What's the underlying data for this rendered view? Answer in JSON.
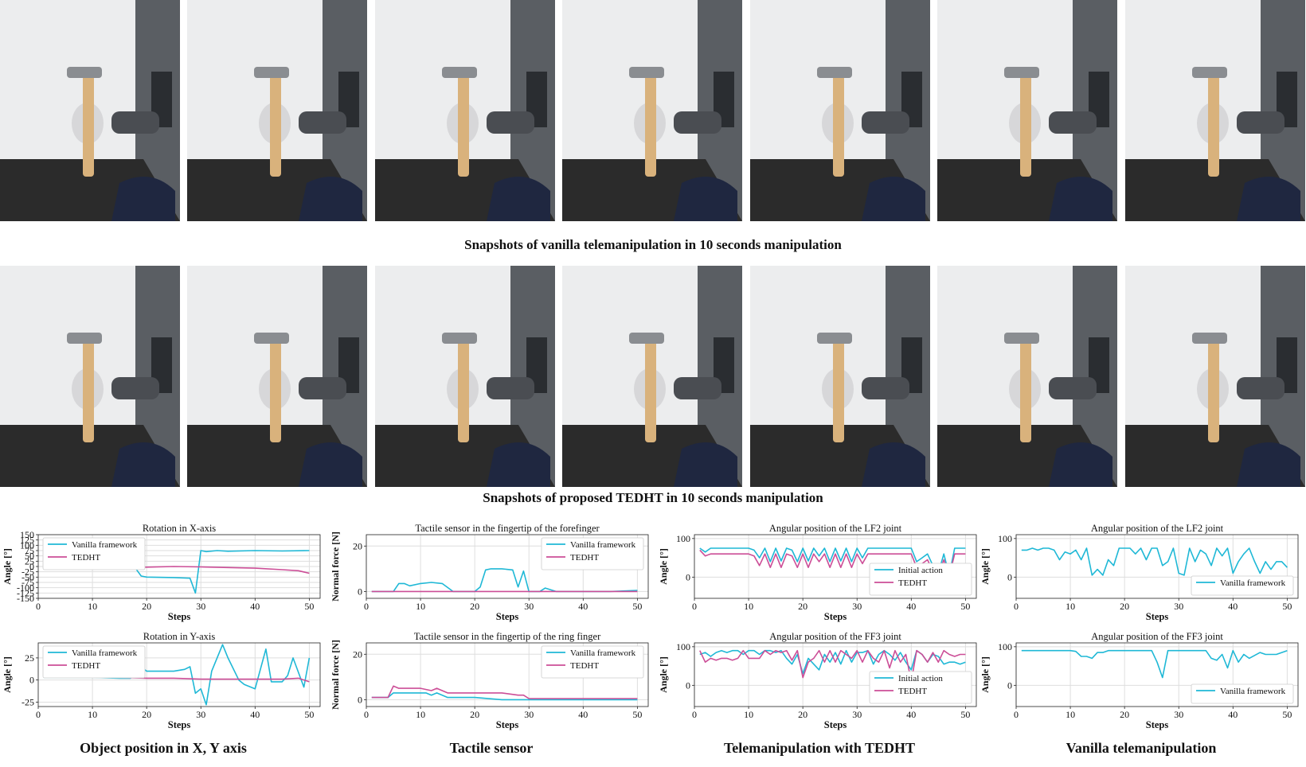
{
  "captions": {
    "vanilla_row": "Snapshots of vanilla telemanipulation in 10 seconds manipulation",
    "tedht_row": "Snapshots of proposed TEDHT in 10 seconds manipulation",
    "col1": "Object position in X, Y axis",
    "col2": "Tactile sensor",
    "col3": "Telemanipulation with TEDHT",
    "col4": "Vanilla telemanipulation"
  },
  "colors": {
    "cyan": "#1fb8d6",
    "magenta": "#cc4e97"
  },
  "chart_data": [
    {
      "type": "line",
      "title": "Rotation in X-axis",
      "xlabel": "Steps",
      "ylabel": "Angle [°]",
      "xlim": [
        0,
        52
      ],
      "ylim": [
        -150,
        150
      ],
      "xticks": [
        0,
        10,
        20,
        30,
        40,
        50
      ],
      "yticks": [
        -150,
        -125,
        -100,
        -75,
        -50,
        -25,
        0,
        25,
        50,
        75,
        100,
        125,
        150
      ],
      "grid": true,
      "legend": "upper-left",
      "series": [
        {
          "name": "Vanilla framework",
          "color": "#1fb8d6",
          "x": [
            1,
            5,
            10,
            15,
            18,
            19,
            20,
            25,
            28,
            29,
            30,
            31,
            33,
            35,
            40,
            45,
            50
          ],
          "y": [
            -5,
            -5,
            -5,
            -6,
            -10,
            -45,
            -50,
            -52,
            -55,
            -125,
            75,
            70,
            75,
            72,
            75,
            73,
            75
          ]
        },
        {
          "name": "TEDHT",
          "color": "#cc4e97",
          "x": [
            1,
            10,
            20,
            25,
            30,
            35,
            40,
            45,
            48,
            50
          ],
          "y": [
            -8,
            -7,
            -3,
            0,
            -2,
            -5,
            -8,
            -15,
            -20,
            -32
          ]
        }
      ]
    },
    {
      "type": "line",
      "title": "Tactile sensor in the fingertip of the forefinger",
      "xlabel": "Steps",
      "ylabel": "Normal force [N]",
      "xlim": [
        0,
        52
      ],
      "ylim": [
        -3,
        25
      ],
      "xticks": [
        0,
        10,
        20,
        30,
        40,
        50
      ],
      "yticks": [
        0,
        20
      ],
      "grid": true,
      "legend": "upper-right",
      "series": [
        {
          "name": "Vanilla framework",
          "color": "#1fb8d6",
          "x": [
            1,
            5,
            6,
            7,
            8,
            10,
            12,
            14,
            16,
            18,
            20,
            21,
            22,
            23,
            25,
            27,
            28,
            29,
            30,
            32,
            33,
            35,
            40,
            45,
            50
          ],
          "y": [
            0,
            0,
            3.5,
            3.5,
            2.5,
            3.5,
            4,
            3.5,
            0,
            0,
            0,
            2,
            9.5,
            10,
            10,
            9.5,
            2,
            9,
            0,
            0,
            1.5,
            0,
            0,
            0,
            0.5
          ]
        },
        {
          "name": "TEDHT",
          "color": "#cc4e97",
          "x": [
            1,
            10,
            15,
            20,
            25,
            30,
            35,
            40,
            45,
            50
          ],
          "y": [
            0,
            0,
            0,
            0,
            0,
            0,
            0,
            0,
            0,
            0
          ]
        }
      ]
    },
    {
      "type": "line",
      "title": "Angular position of the LF2 joint",
      "xlabel": "Steps",
      "ylabel": "Angle [°]",
      "xlim": [
        0,
        52
      ],
      "ylim": [
        -55,
        110
      ],
      "xticks": [
        0,
        10,
        20,
        30,
        40,
        50
      ],
      "yticks": [
        0,
        100
      ],
      "grid": true,
      "legend": "lower-right",
      "series": [
        {
          "name": "Initial action",
          "color": "#1fb8d6",
          "x": [
            1,
            2,
            3,
            5,
            10,
            11,
            12,
            13,
            14,
            15,
            16,
            17,
            18,
            19,
            20,
            21,
            22,
            23,
            24,
            25,
            26,
            27,
            28,
            29,
            30,
            31,
            32,
            35,
            40,
            41,
            42,
            43,
            44,
            45,
            46,
            47,
            48,
            50
          ],
          "y": [
            75,
            65,
            75,
            75,
            75,
            70,
            50,
            75,
            40,
            75,
            42,
            75,
            70,
            40,
            75,
            42,
            75,
            55,
            75,
            40,
            75,
            42,
            75,
            40,
            75,
            50,
            75,
            75,
            75,
            40,
            50,
            60,
            30,
            10,
            60,
            5,
            75,
            75
          ]
        },
        {
          "name": "TEDHT",
          "color": "#cc4e97",
          "x": [
            1,
            2,
            3,
            5,
            10,
            11,
            12,
            13,
            14,
            15,
            16,
            17,
            18,
            19,
            20,
            21,
            22,
            23,
            24,
            25,
            26,
            27,
            28,
            29,
            30,
            31,
            32,
            35,
            40,
            41,
            42,
            43,
            44,
            45,
            46,
            47,
            48,
            50
          ],
          "y": [
            70,
            55,
            60,
            60,
            60,
            55,
            30,
            60,
            25,
            60,
            25,
            60,
            55,
            25,
            60,
            25,
            60,
            40,
            60,
            25,
            60,
            25,
            60,
            25,
            60,
            35,
            60,
            60,
            60,
            25,
            35,
            45,
            15,
            5,
            45,
            2,
            60,
            60
          ]
        }
      ]
    },
    {
      "type": "line",
      "title": "Angular position of the LF2 joint",
      "xlabel": "Steps",
      "ylabel": "Angle [°]",
      "xlim": [
        0,
        52
      ],
      "ylim": [
        -55,
        110
      ],
      "xticks": [
        0,
        10,
        20,
        30,
        40,
        50
      ],
      "yticks": [
        0,
        100
      ],
      "grid": true,
      "legend": "lower-right",
      "series": [
        {
          "name": "Vanilla framework",
          "color": "#1fb8d6",
          "x": [
            1,
            2,
            3,
            4,
            5,
            6,
            7,
            8,
            9,
            10,
            11,
            12,
            13,
            14,
            15,
            16,
            17,
            18,
            19,
            20,
            21,
            22,
            23,
            24,
            25,
            26,
            27,
            28,
            29,
            30,
            31,
            32,
            33,
            34,
            35,
            36,
            37,
            38,
            39,
            40,
            41,
            42,
            43,
            44,
            45,
            46,
            47,
            48,
            49,
            50
          ],
          "y": [
            70,
            70,
            75,
            70,
            75,
            75,
            70,
            45,
            65,
            60,
            70,
            45,
            75,
            5,
            20,
            5,
            45,
            30,
            75,
            75,
            75,
            60,
            75,
            45,
            75,
            75,
            30,
            40,
            75,
            10,
            5,
            75,
            40,
            70,
            60,
            30,
            75,
            55,
            75,
            10,
            40,
            60,
            75,
            40,
            10,
            40,
            20,
            40,
            40,
            25
          ]
        }
      ]
    },
    {
      "type": "line",
      "title": "Rotation in Y-axis",
      "xlabel": "Steps",
      "ylabel": "Angle [°]",
      "xlim": [
        0,
        52
      ],
      "ylim": [
        -30,
        42
      ],
      "xticks": [
        0,
        10,
        20,
        30,
        40,
        50
      ],
      "yticks": [
        -25,
        0,
        25
      ],
      "grid": true,
      "legend": "upper-left",
      "series": [
        {
          "name": "Vanilla framework",
          "color": "#1fb8d6",
          "x": [
            1,
            5,
            10,
            15,
            17,
            18,
            19,
            20,
            25,
            27,
            28,
            29,
            30,
            31,
            32,
            34,
            35,
            37,
            38,
            40,
            42,
            43,
            45,
            46,
            47,
            49,
            50
          ],
          "y": [
            3,
            3,
            3,
            2,
            2,
            5,
            15,
            10,
            10,
            12,
            15,
            -15,
            -10,
            -28,
            10,
            40,
            25,
            0,
            -5,
            -10,
            35,
            -2,
            -2,
            5,
            25,
            -8,
            25
          ]
        },
        {
          "name": "TEDHT",
          "color": "#cc4e97",
          "x": [
            1,
            5,
            10,
            15,
            20,
            25,
            30,
            35,
            40,
            45,
            48,
            50
          ],
          "y": [
            5,
            5,
            4,
            3,
            2,
            2,
            1,
            1,
            1,
            1,
            2,
            -2
          ]
        }
      ]
    },
    {
      "type": "line",
      "title": "Tactile sensor in the fingertip of the ring finger",
      "xlabel": "Steps",
      "ylabel": "Normal force [N]",
      "xlim": [
        0,
        52
      ],
      "ylim": [
        -3,
        25
      ],
      "xticks": [
        0,
        10,
        20,
        30,
        40,
        50
      ],
      "yticks": [
        0,
        20
      ],
      "grid": true,
      "legend": "upper-right",
      "series": [
        {
          "name": "Vanilla framework",
          "color": "#1fb8d6",
          "x": [
            1,
            4,
            5,
            8,
            10,
            11,
            12,
            13,
            15,
            18,
            20,
            25,
            30,
            35,
            40,
            45,
            50
          ],
          "y": [
            1,
            1,
            3,
            3,
            3,
            3,
            2,
            3,
            1,
            1,
            1,
            0,
            0,
            0,
            0,
            0,
            0
          ]
        },
        {
          "name": "TEDHT",
          "color": "#cc4e97",
          "x": [
            1,
            4,
            5,
            6,
            8,
            10,
            12,
            13,
            15,
            18,
            20,
            25,
            28,
            29,
            30,
            35,
            40,
            45,
            50
          ],
          "y": [
            1,
            1,
            6,
            5,
            5,
            5,
            4,
            5,
            3,
            3,
            3,
            3,
            2,
            2,
            0.5,
            0.5,
            0.5,
            0.5,
            0.5
          ]
        }
      ]
    },
    {
      "type": "line",
      "title": "Angular position of the FF3 joint",
      "xlabel": "Steps",
      "ylabel": "Angle [°]",
      "xlim": [
        0,
        52
      ],
      "ylim": [
        -55,
        110
      ],
      "xticks": [
        0,
        10,
        20,
        30,
        40,
        50
      ],
      "yticks": [
        0,
        100
      ],
      "grid": true,
      "legend": "lower-right",
      "series": [
        {
          "name": "Initial action",
          "color": "#1fb8d6",
          "x": [
            1,
            2,
            3,
            4,
            5,
            6,
            7,
            8,
            9,
            10,
            11,
            12,
            13,
            14,
            15,
            16,
            17,
            18,
            19,
            20,
            21,
            22,
            23,
            24,
            25,
            26,
            27,
            28,
            29,
            30,
            31,
            32,
            33,
            34,
            35,
            36,
            37,
            38,
            39,
            40,
            41,
            42,
            43,
            44,
            45,
            46,
            47,
            48,
            49,
            50
          ],
          "y": [
            80,
            85,
            75,
            85,
            90,
            85,
            90,
            90,
            80,
            90,
            90,
            80,
            90,
            90,
            85,
            90,
            70,
            55,
            80,
            30,
            70,
            55,
            40,
            80,
            60,
            85,
            55,
            90,
            60,
            85,
            85,
            90,
            55,
            80,
            90,
            80,
            65,
            85,
            60,
            40,
            90,
            80,
            60,
            80,
            75,
            55,
            60,
            60,
            55,
            60
          ]
        },
        {
          "name": "TEDHT",
          "color": "#cc4e97",
          "x": [
            1,
            2,
            3,
            4,
            5,
            6,
            7,
            8,
            9,
            10,
            11,
            12,
            13,
            14,
            15,
            16,
            17,
            18,
            19,
            20,
            21,
            22,
            23,
            24,
            25,
            26,
            27,
            28,
            29,
            30,
            31,
            32,
            33,
            34,
            35,
            36,
            37,
            38,
            39,
            40,
            41,
            42,
            43,
            44,
            45,
            46,
            47,
            48,
            49,
            50
          ],
          "y": [
            90,
            60,
            70,
            65,
            70,
            70,
            65,
            70,
            90,
            70,
            70,
            70,
            90,
            80,
            90,
            85,
            90,
            65,
            90,
            20,
            60,
            70,
            90,
            60,
            90,
            60,
            90,
            80,
            70,
            90,
            60,
            90,
            70,
            60,
            90,
            45,
            90,
            60,
            80,
            10,
            90,
            80,
            60,
            85,
            60,
            90,
            80,
            75,
            80,
            80
          ]
        }
      ]
    },
    {
      "type": "line",
      "title": "Angular position of the FF3 joint",
      "xlabel": "Steps",
      "ylabel": "Angle [°]",
      "xlim": [
        0,
        52
      ],
      "ylim": [
        -55,
        110
      ],
      "xticks": [
        0,
        10,
        20,
        30,
        40,
        50
      ],
      "yticks": [
        0,
        100
      ],
      "grid": true,
      "legend": "lower-right",
      "series": [
        {
          "name": "Vanilla framework",
          "color": "#1fb8d6",
          "x": [
            1,
            5,
            10,
            11,
            12,
            13,
            14,
            15,
            16,
            17,
            20,
            25,
            26,
            27,
            28,
            30,
            32,
            35,
            36,
            37,
            38,
            39,
            40,
            41,
            42,
            43,
            45,
            46,
            47,
            48,
            50
          ],
          "y": [
            90,
            90,
            90,
            88,
            75,
            75,
            70,
            85,
            85,
            90,
            90,
            90,
            60,
            20,
            90,
            90,
            90,
            90,
            70,
            65,
            80,
            45,
            90,
            60,
            80,
            70,
            85,
            80,
            80,
            80,
            90
          ]
        }
      ]
    }
  ]
}
